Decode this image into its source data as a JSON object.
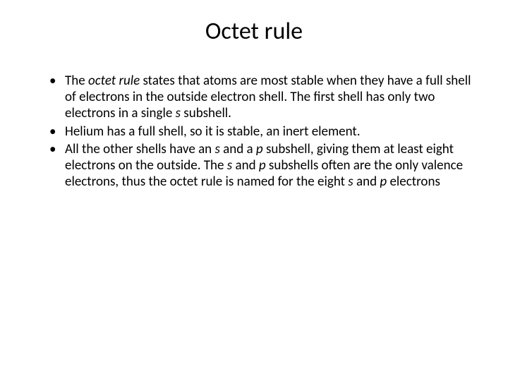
{
  "slide": {
    "title": "Octet rule",
    "title_fontsize": 34,
    "body_fontsize": 19,
    "text_color": "#000000",
    "background_color": "#ffffff",
    "bullets": [
      {
        "runs": [
          {
            "text": "The ",
            "italic": false
          },
          {
            "text": "octet rule",
            "italic": true
          },
          {
            "text": " states that atoms are most stable when they have a full shell of electrons in the outside electron shell. The first shell has only two electrons in a single ",
            "italic": false
          },
          {
            "text": "s",
            "italic": true
          },
          {
            "text": " subshell.",
            "italic": false
          }
        ]
      },
      {
        "runs": [
          {
            "text": " Helium has a full shell, so it is stable, an inert element.",
            "italic": false
          }
        ]
      },
      {
        "runs": [
          {
            "text": " All the other shells have an ",
            "italic": false
          },
          {
            "text": "s",
            "italic": true
          },
          {
            "text": " and a ",
            "italic": false
          },
          {
            "text": "p",
            "italic": true
          },
          {
            "text": " subshell, giving them at least eight electrons on the outside. The ",
            "italic": false
          },
          {
            "text": "s",
            "italic": true
          },
          {
            "text": " and ",
            "italic": false
          },
          {
            "text": "p",
            "italic": true
          },
          {
            "text": " subshells often are the only valence electrons, thus the octet rule is named for the eight ",
            "italic": false
          },
          {
            "text": "s",
            "italic": true
          },
          {
            "text": " and ",
            "italic": false
          },
          {
            "text": "p",
            "italic": true
          },
          {
            "text": " electrons",
            "italic": false
          }
        ]
      }
    ]
  }
}
